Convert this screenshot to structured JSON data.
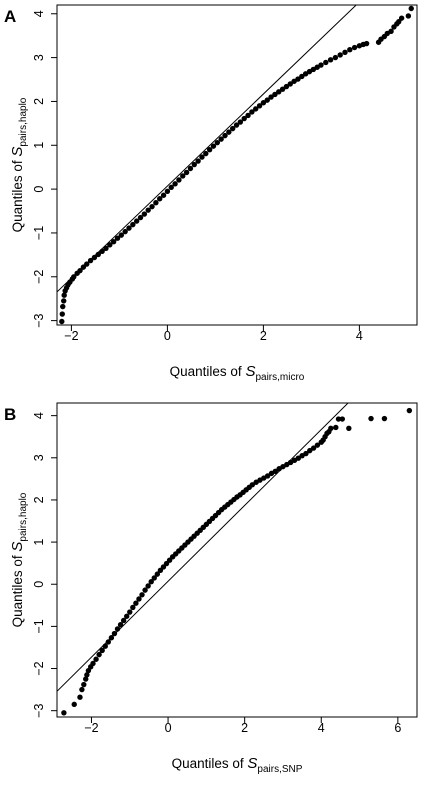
{
  "panels": [
    {
      "letter": "A",
      "xlabel": {
        "prefix": "Quantiles of ",
        "symbol": "S",
        "subscript": "pairs,micro"
      },
      "ylabel": {
        "prefix": "Quantiles of ",
        "symbol": "S",
        "subscript": "pairs,haplo"
      }
    },
    {
      "letter": "B",
      "xlabel": {
        "prefix": "Quantiles of ",
        "symbol": "S",
        "subscript": "pairs,SNP"
      },
      "ylabel": {
        "prefix": "Quantiles of ",
        "symbol": "S",
        "subscript": "pairs,haplo"
      }
    }
  ],
  "chart_data": [
    {
      "type": "scatter",
      "panel": "A",
      "xlim": [
        -2.3,
        5.2
      ],
      "ylim": [
        -3.1,
        4.2
      ],
      "xticks": [
        -2,
        0,
        2,
        4
      ],
      "yticks": [
        -3,
        -2,
        -1,
        0,
        1,
        2,
        3,
        4
      ],
      "xtick_labels": [
        "−2",
        "0",
        "2",
        "4"
      ],
      "ytick_labels": [
        "−3",
        "−2",
        "−1",
        "0",
        "1",
        "2",
        "3",
        "4"
      ],
      "reference_line": {
        "intercept": 0.07,
        "slope": 1.05
      },
      "points": [
        [
          -2.2,
          -3.02
        ],
        [
          -2.19,
          -2.85
        ],
        [
          -2.18,
          -2.68
        ],
        [
          -2.16,
          -2.55
        ],
        [
          -2.15,
          -2.42
        ],
        [
          -2.13,
          -2.32
        ],
        [
          -2.1,
          -2.25
        ],
        [
          -2.07,
          -2.18
        ],
        [
          -2.03,
          -2.12
        ],
        [
          -1.98,
          -2.05
        ],
        [
          -1.95,
          -2.0
        ],
        [
          -1.88,
          -1.92
        ],
        [
          -1.82,
          -1.86
        ],
        [
          -1.75,
          -1.78
        ],
        [
          -1.68,
          -1.71
        ],
        [
          -1.6,
          -1.63
        ],
        [
          -1.52,
          -1.56
        ],
        [
          -1.44,
          -1.49
        ],
        [
          -1.36,
          -1.42
        ],
        [
          -1.28,
          -1.35
        ],
        [
          -1.2,
          -1.27
        ],
        [
          -1.12,
          -1.2
        ],
        [
          -1.04,
          -1.12
        ],
        [
          -0.96,
          -1.05
        ],
        [
          -0.88,
          -0.97
        ],
        [
          -0.8,
          -0.89
        ],
        [
          -0.72,
          -0.81
        ],
        [
          -0.64,
          -0.73
        ],
        [
          -0.56,
          -0.65
        ],
        [
          -0.48,
          -0.57
        ],
        [
          -0.4,
          -0.48
        ],
        [
          -0.32,
          -0.4
        ],
        [
          -0.24,
          -0.31
        ],
        [
          -0.16,
          -0.22
        ],
        [
          -0.08,
          -0.14
        ],
        [
          0.0,
          -0.05
        ],
        [
          0.08,
          0.04
        ],
        [
          0.16,
          0.12
        ],
        [
          0.24,
          0.21
        ],
        [
          0.32,
          0.3
        ],
        [
          0.4,
          0.38
        ],
        [
          0.48,
          0.47
        ],
        [
          0.56,
          0.56
        ],
        [
          0.64,
          0.64
        ],
        [
          0.72,
          0.73
        ],
        [
          0.8,
          0.81
        ],
        [
          0.88,
          0.9
        ],
        [
          0.96,
          0.98
        ],
        [
          1.04,
          1.06
        ],
        [
          1.12,
          1.14
        ],
        [
          1.2,
          1.22
        ],
        [
          1.28,
          1.3
        ],
        [
          1.36,
          1.38
        ],
        [
          1.44,
          1.46
        ],
        [
          1.52,
          1.53
        ],
        [
          1.6,
          1.61
        ],
        [
          1.68,
          1.68
        ],
        [
          1.76,
          1.76
        ],
        [
          1.84,
          1.83
        ],
        [
          1.92,
          1.9
        ],
        [
          2.0,
          1.97
        ],
        [
          2.08,
          2.03
        ],
        [
          2.16,
          2.1
        ],
        [
          2.24,
          2.16
        ],
        [
          2.32,
          2.22
        ],
        [
          2.4,
          2.28
        ],
        [
          2.48,
          2.34
        ],
        [
          2.56,
          2.4
        ],
        [
          2.64,
          2.46
        ],
        [
          2.72,
          2.51
        ],
        [
          2.8,
          2.57
        ],
        [
          2.88,
          2.63
        ],
        [
          2.96,
          2.68
        ],
        [
          3.04,
          2.73
        ],
        [
          3.12,
          2.78
        ],
        [
          3.2,
          2.83
        ],
        [
          3.3,
          2.89
        ],
        [
          3.4,
          2.95
        ],
        [
          3.5,
          3.0
        ],
        [
          3.6,
          3.06
        ],
        [
          3.7,
          3.12
        ],
        [
          3.8,
          3.18
        ],
        [
          3.9,
          3.23
        ],
        [
          4.0,
          3.27
        ],
        [
          4.08,
          3.3
        ],
        [
          4.15,
          3.32
        ],
        [
          4.4,
          3.35
        ],
        [
          4.45,
          3.42
        ],
        [
          4.52,
          3.48
        ],
        [
          4.58,
          3.55
        ],
        [
          4.66,
          3.6
        ],
        [
          4.72,
          3.7
        ],
        [
          4.78,
          3.77
        ],
        [
          4.82,
          3.82
        ],
        [
          4.88,
          3.9
        ],
        [
          5.02,
          3.95
        ],
        [
          5.08,
          4.12
        ]
      ]
    },
    {
      "type": "scatter",
      "panel": "B",
      "xlim": [
        -2.9,
        6.5
      ],
      "ylim": [
        -3.15,
        4.3
      ],
      "xticks": [
        -2,
        0,
        2,
        4,
        6
      ],
      "yticks": [
        -3,
        -2,
        -1,
        0,
        1,
        2,
        3,
        4
      ],
      "xtick_labels": [
        "−2",
        "0",
        "2",
        "4",
        "6"
      ],
      "ytick_labels": [
        "−3",
        "−2",
        "−1",
        "0",
        "1",
        "2",
        "3",
        "4"
      ],
      "reference_line": {
        "intercept": 0.07,
        "slope": 0.9
      },
      "points": [
        [
          -2.72,
          -3.05
        ],
        [
          -2.45,
          -2.85
        ],
        [
          -2.3,
          -2.68
        ],
        [
          -2.25,
          -2.5
        ],
        [
          -2.2,
          -2.38
        ],
        [
          -2.15,
          -2.25
        ],
        [
          -2.12,
          -2.15
        ],
        [
          -2.08,
          -2.05
        ],
        [
          -2.02,
          -1.96
        ],
        [
          -1.96,
          -1.88
        ],
        [
          -1.88,
          -1.78
        ],
        [
          -1.8,
          -1.67
        ],
        [
          -1.72,
          -1.57
        ],
        [
          -1.64,
          -1.47
        ],
        [
          -1.56,
          -1.37
        ],
        [
          -1.48,
          -1.27
        ],
        [
          -1.4,
          -1.17
        ],
        [
          -1.32,
          -1.06
        ],
        [
          -1.24,
          -0.96
        ],
        [
          -1.16,
          -0.86
        ],
        [
          -1.08,
          -0.76
        ],
        [
          -1.0,
          -0.66
        ],
        [
          -0.92,
          -0.55
        ],
        [
          -0.84,
          -0.45
        ],
        [
          -0.76,
          -0.35
        ],
        [
          -0.68,
          -0.25
        ],
        [
          -0.6,
          -0.14
        ],
        [
          -0.52,
          -0.04
        ],
        [
          -0.44,
          0.06
        ],
        [
          -0.36,
          0.15
        ],
        [
          -0.28,
          0.24
        ],
        [
          -0.2,
          0.33
        ],
        [
          -0.12,
          0.41
        ],
        [
          -0.04,
          0.49
        ],
        [
          0.04,
          0.57
        ],
        [
          0.12,
          0.65
        ],
        [
          0.2,
          0.72
        ],
        [
          0.28,
          0.79
        ],
        [
          0.36,
          0.86
        ],
        [
          0.44,
          0.93
        ],
        [
          0.52,
          1.0
        ],
        [
          0.6,
          1.07
        ],
        [
          0.68,
          1.14
        ],
        [
          0.76,
          1.21
        ],
        [
          0.84,
          1.28
        ],
        [
          0.92,
          1.35
        ],
        [
          1.0,
          1.42
        ],
        [
          1.08,
          1.49
        ],
        [
          1.16,
          1.56
        ],
        [
          1.24,
          1.63
        ],
        [
          1.32,
          1.7
        ],
        [
          1.4,
          1.77
        ],
        [
          1.48,
          1.83
        ],
        [
          1.56,
          1.89
        ],
        [
          1.64,
          1.95
        ],
        [
          1.72,
          2.01
        ],
        [
          1.8,
          2.07
        ],
        [
          1.88,
          2.12
        ],
        [
          1.96,
          2.18
        ],
        [
          2.04,
          2.24
        ],
        [
          2.12,
          2.3
        ],
        [
          2.2,
          2.36
        ],
        [
          2.3,
          2.42
        ],
        [
          2.4,
          2.47
        ],
        [
          2.5,
          2.52
        ],
        [
          2.6,
          2.57
        ],
        [
          2.7,
          2.63
        ],
        [
          2.8,
          2.68
        ],
        [
          2.9,
          2.74
        ],
        [
          3.0,
          2.79
        ],
        [
          3.1,
          2.84
        ],
        [
          3.2,
          2.89
        ],
        [
          3.3,
          2.94
        ],
        [
          3.4,
          2.99
        ],
        [
          3.5,
          3.05
        ],
        [
          3.6,
          3.1
        ],
        [
          3.7,
          3.17
        ],
        [
          3.8,
          3.23
        ],
        [
          3.9,
          3.3
        ],
        [
          4.0,
          3.37
        ],
        [
          4.05,
          3.42
        ],
        [
          4.1,
          3.5
        ],
        [
          4.15,
          3.58
        ],
        [
          4.2,
          3.62
        ],
        [
          4.25,
          3.7
        ],
        [
          4.38,
          3.72
        ],
        [
          4.45,
          3.92
        ],
        [
          4.55,
          3.92
        ],
        [
          4.72,
          3.7
        ],
        [
          5.3,
          3.93
        ],
        [
          5.65,
          3.93
        ],
        [
          6.3,
          4.12
        ]
      ]
    }
  ]
}
